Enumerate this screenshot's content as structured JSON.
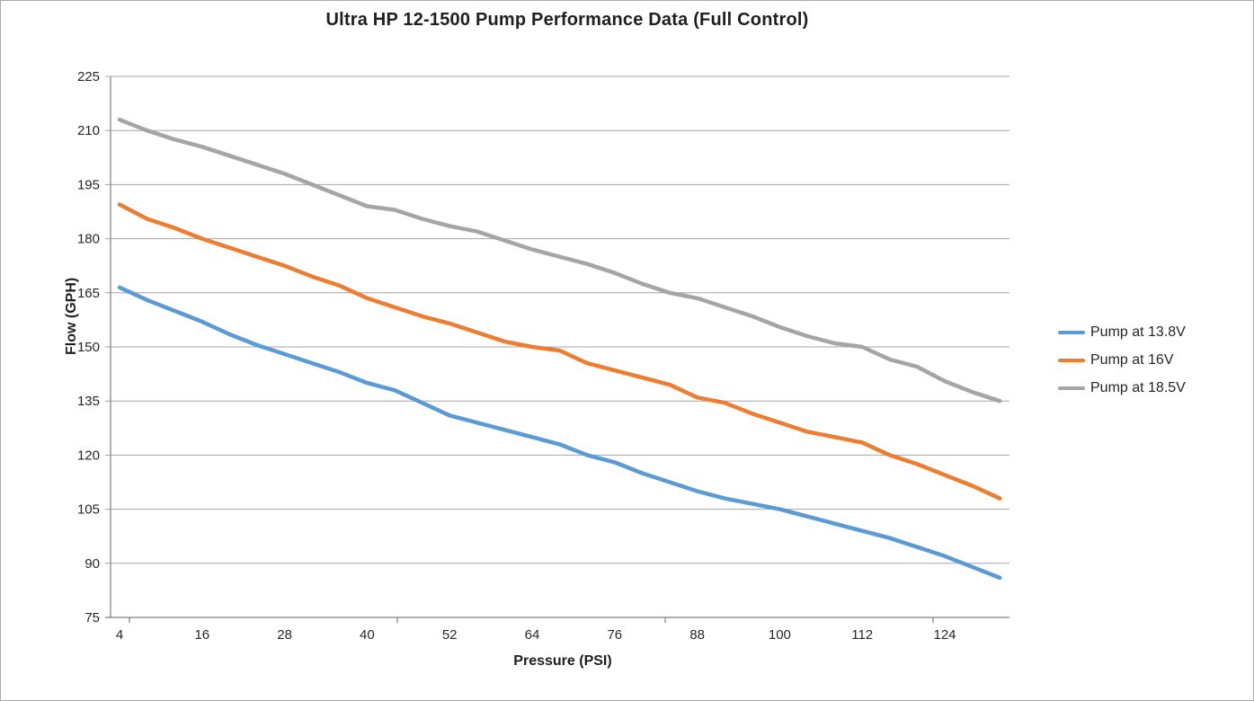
{
  "chart": {
    "title": "Ultra HP 12-1500 Pump Performance Data (Full Control)",
    "xlabel": "Pressure (PSI)",
    "ylabel": "Flow (GPH)"
  },
  "chart_data": {
    "type": "line",
    "title": "Ultra HP 12-1500 Pump Performance Data (Full Control)",
    "xlabel": "Pressure (PSI)",
    "ylabel": "Flow (GPH)",
    "x": [
      4,
      8,
      12,
      16,
      20,
      24,
      28,
      32,
      36,
      40,
      44,
      48,
      52,
      56,
      60,
      64,
      68,
      72,
      76,
      80,
      84,
      88,
      92,
      96,
      100,
      104,
      108,
      112,
      116,
      120,
      124,
      128,
      132
    ],
    "series": [
      {
        "name": "Pump at 13.8V",
        "color": "#5B9BD5",
        "values": [
          166.5,
          163,
          160,
          157,
          153.5,
          150.5,
          148,
          145.5,
          143,
          140,
          138,
          134.5,
          131,
          129,
          127,
          125,
          123,
          120,
          118,
          115,
          112.5,
          110,
          108,
          106.5,
          105,
          103,
          101,
          99,
          97,
          94.5,
          92,
          89,
          86
        ]
      },
      {
        "name": "Pump at 16V",
        "color": "#ED7D31",
        "values": [
          189.5,
          185.5,
          183,
          180,
          177.5,
          175,
          172.5,
          169.5,
          167,
          163.5,
          161,
          158.5,
          156.5,
          154,
          151.5,
          150,
          149,
          145.5,
          143.5,
          141.5,
          139.5,
          136,
          134.5,
          131.5,
          129,
          126.5,
          125,
          123.5,
          120,
          117.5,
          114.5,
          111.5,
          108
        ]
      },
      {
        "name": "Pump at 18.5V",
        "color": "#A5A5A5",
        "values": [
          213,
          210,
          207.5,
          205.5,
          203,
          200.5,
          198,
          195,
          192,
          189,
          188,
          185.5,
          183.5,
          182,
          179.5,
          177,
          175,
          173,
          170.5,
          167.5,
          165,
          163.5,
          161,
          158.5,
          155.5,
          153,
          151,
          150,
          146.5,
          144.5,
          140.5,
          137.5,
          135
        ]
      }
    ],
    "ylim": [
      75,
      225
    ],
    "yticks": [
      75,
      90,
      105,
      120,
      135,
      150,
      165,
      180,
      195,
      210,
      225
    ],
    "xticks_labeled": [
      4,
      16,
      28,
      40,
      52,
      64,
      76,
      88,
      100,
      112,
      124
    ],
    "grid": "horizontal",
    "legend_position": "right",
    "colors": {
      "gridline": "#a6a6a6",
      "axis": "#808080",
      "tick_text": "#262626",
      "title_text": "#1f1f1f"
    }
  }
}
